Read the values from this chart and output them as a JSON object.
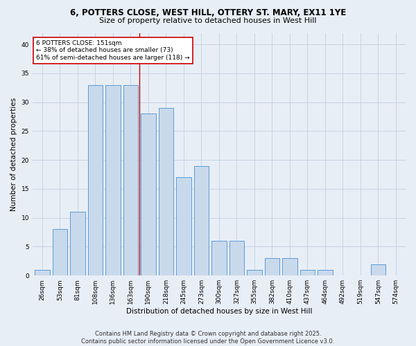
{
  "title_line1": "6, POTTERS CLOSE, WEST HILL, OTTERY ST. MARY, EX11 1YE",
  "title_line2": "Size of property relative to detached houses in West Hill",
  "xlabel": "Distribution of detached houses by size in West Hill",
  "ylabel": "Number of detached properties",
  "bin_labels": [
    "26sqm",
    "53sqm",
    "81sqm",
    "108sqm",
    "136sqm",
    "163sqm",
    "190sqm",
    "218sqm",
    "245sqm",
    "273sqm",
    "300sqm",
    "327sqm",
    "355sqm",
    "382sqm",
    "410sqm",
    "437sqm",
    "464sqm",
    "492sqm",
    "519sqm",
    "547sqm",
    "574sqm"
  ],
  "bar_values": [
    1,
    8,
    11,
    33,
    33,
    33,
    28,
    29,
    17,
    19,
    6,
    6,
    1,
    3,
    3,
    1,
    1,
    0,
    0,
    2,
    0
  ],
  "bar_color": "#c9d9ec",
  "bar_edge_color": "#5b9bd5",
  "grid_color": "#c8d4e3",
  "background_color": "#e8eef6",
  "vline_x": 5.5,
  "vline_color": "#cc0000",
  "annotation_line1": "6 POTTERS CLOSE: 151sqm",
  "annotation_line2": "← 38% of detached houses are smaller (73)",
  "annotation_line3": "61% of semi-detached houses are larger (118) →",
  "annotation_box_color": "#ffffff",
  "annotation_box_edge": "#cc0000",
  "annotation_fontsize": 6.5,
  "ylim": [
    0,
    42
  ],
  "yticks": [
    0,
    5,
    10,
    15,
    20,
    25,
    30,
    35,
    40
  ],
  "footer_line1": "Contains HM Land Registry data © Crown copyright and database right 2025.",
  "footer_line2": "Contains public sector information licensed under the Open Government Licence v3.0.",
  "title_fontsize": 8.5,
  "subtitle_fontsize": 8.0,
  "axis_label_fontsize": 7.5,
  "tick_fontsize": 6.5,
  "footer_fontsize": 6.0
}
